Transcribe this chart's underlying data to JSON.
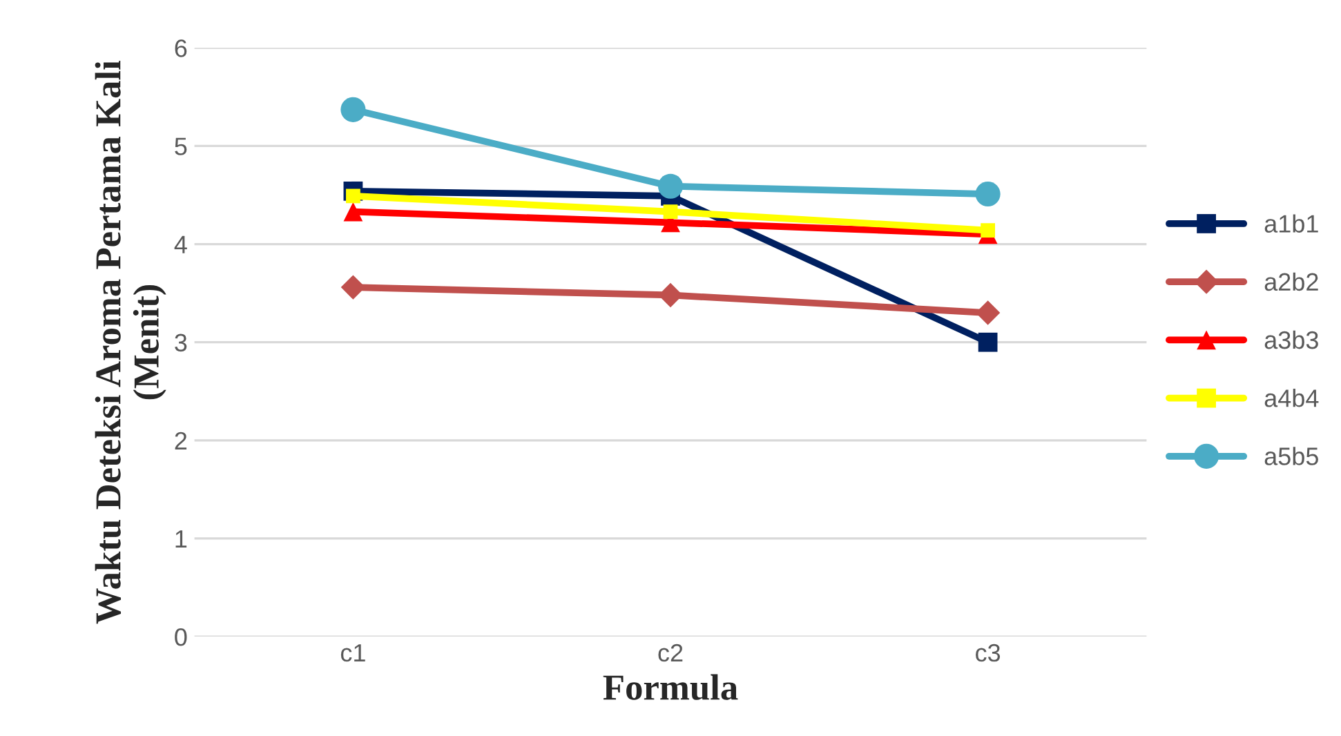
{
  "chart_data": {
    "type": "line",
    "xlabel": "Formula",
    "ylabel": "Waktu Deteksi Aroma Pertama Kali (Menit)",
    "categories": [
      "c1",
      "c2",
      "c3"
    ],
    "series": [
      {
        "name": "a1b1",
        "color": "#002060",
        "marker": "square",
        "values": [
          4.54,
          4.49,
          3.0
        ]
      },
      {
        "name": "a2b2",
        "color": "#c0504d",
        "marker": "diamond",
        "values": [
          3.56,
          3.48,
          3.3
        ]
      },
      {
        "name": "a3b3",
        "color": "#ff0000",
        "marker": "triangle",
        "values": [
          4.33,
          4.22,
          4.1
        ]
      },
      {
        "name": "a4b4",
        "color": "#ffff00",
        "marker": "square",
        "values": [
          4.49,
          4.33,
          4.14
        ]
      },
      {
        "name": "a5b5",
        "color": "#4bacc6",
        "marker": "circle",
        "values": [
          5.37,
          4.59,
          4.51
        ]
      }
    ],
    "ylim": [
      0,
      6
    ],
    "yticks": [
      0,
      1,
      2,
      3,
      4,
      5,
      6
    ],
    "grid": "y",
    "legend": "right",
    "line_style": "solid"
  }
}
